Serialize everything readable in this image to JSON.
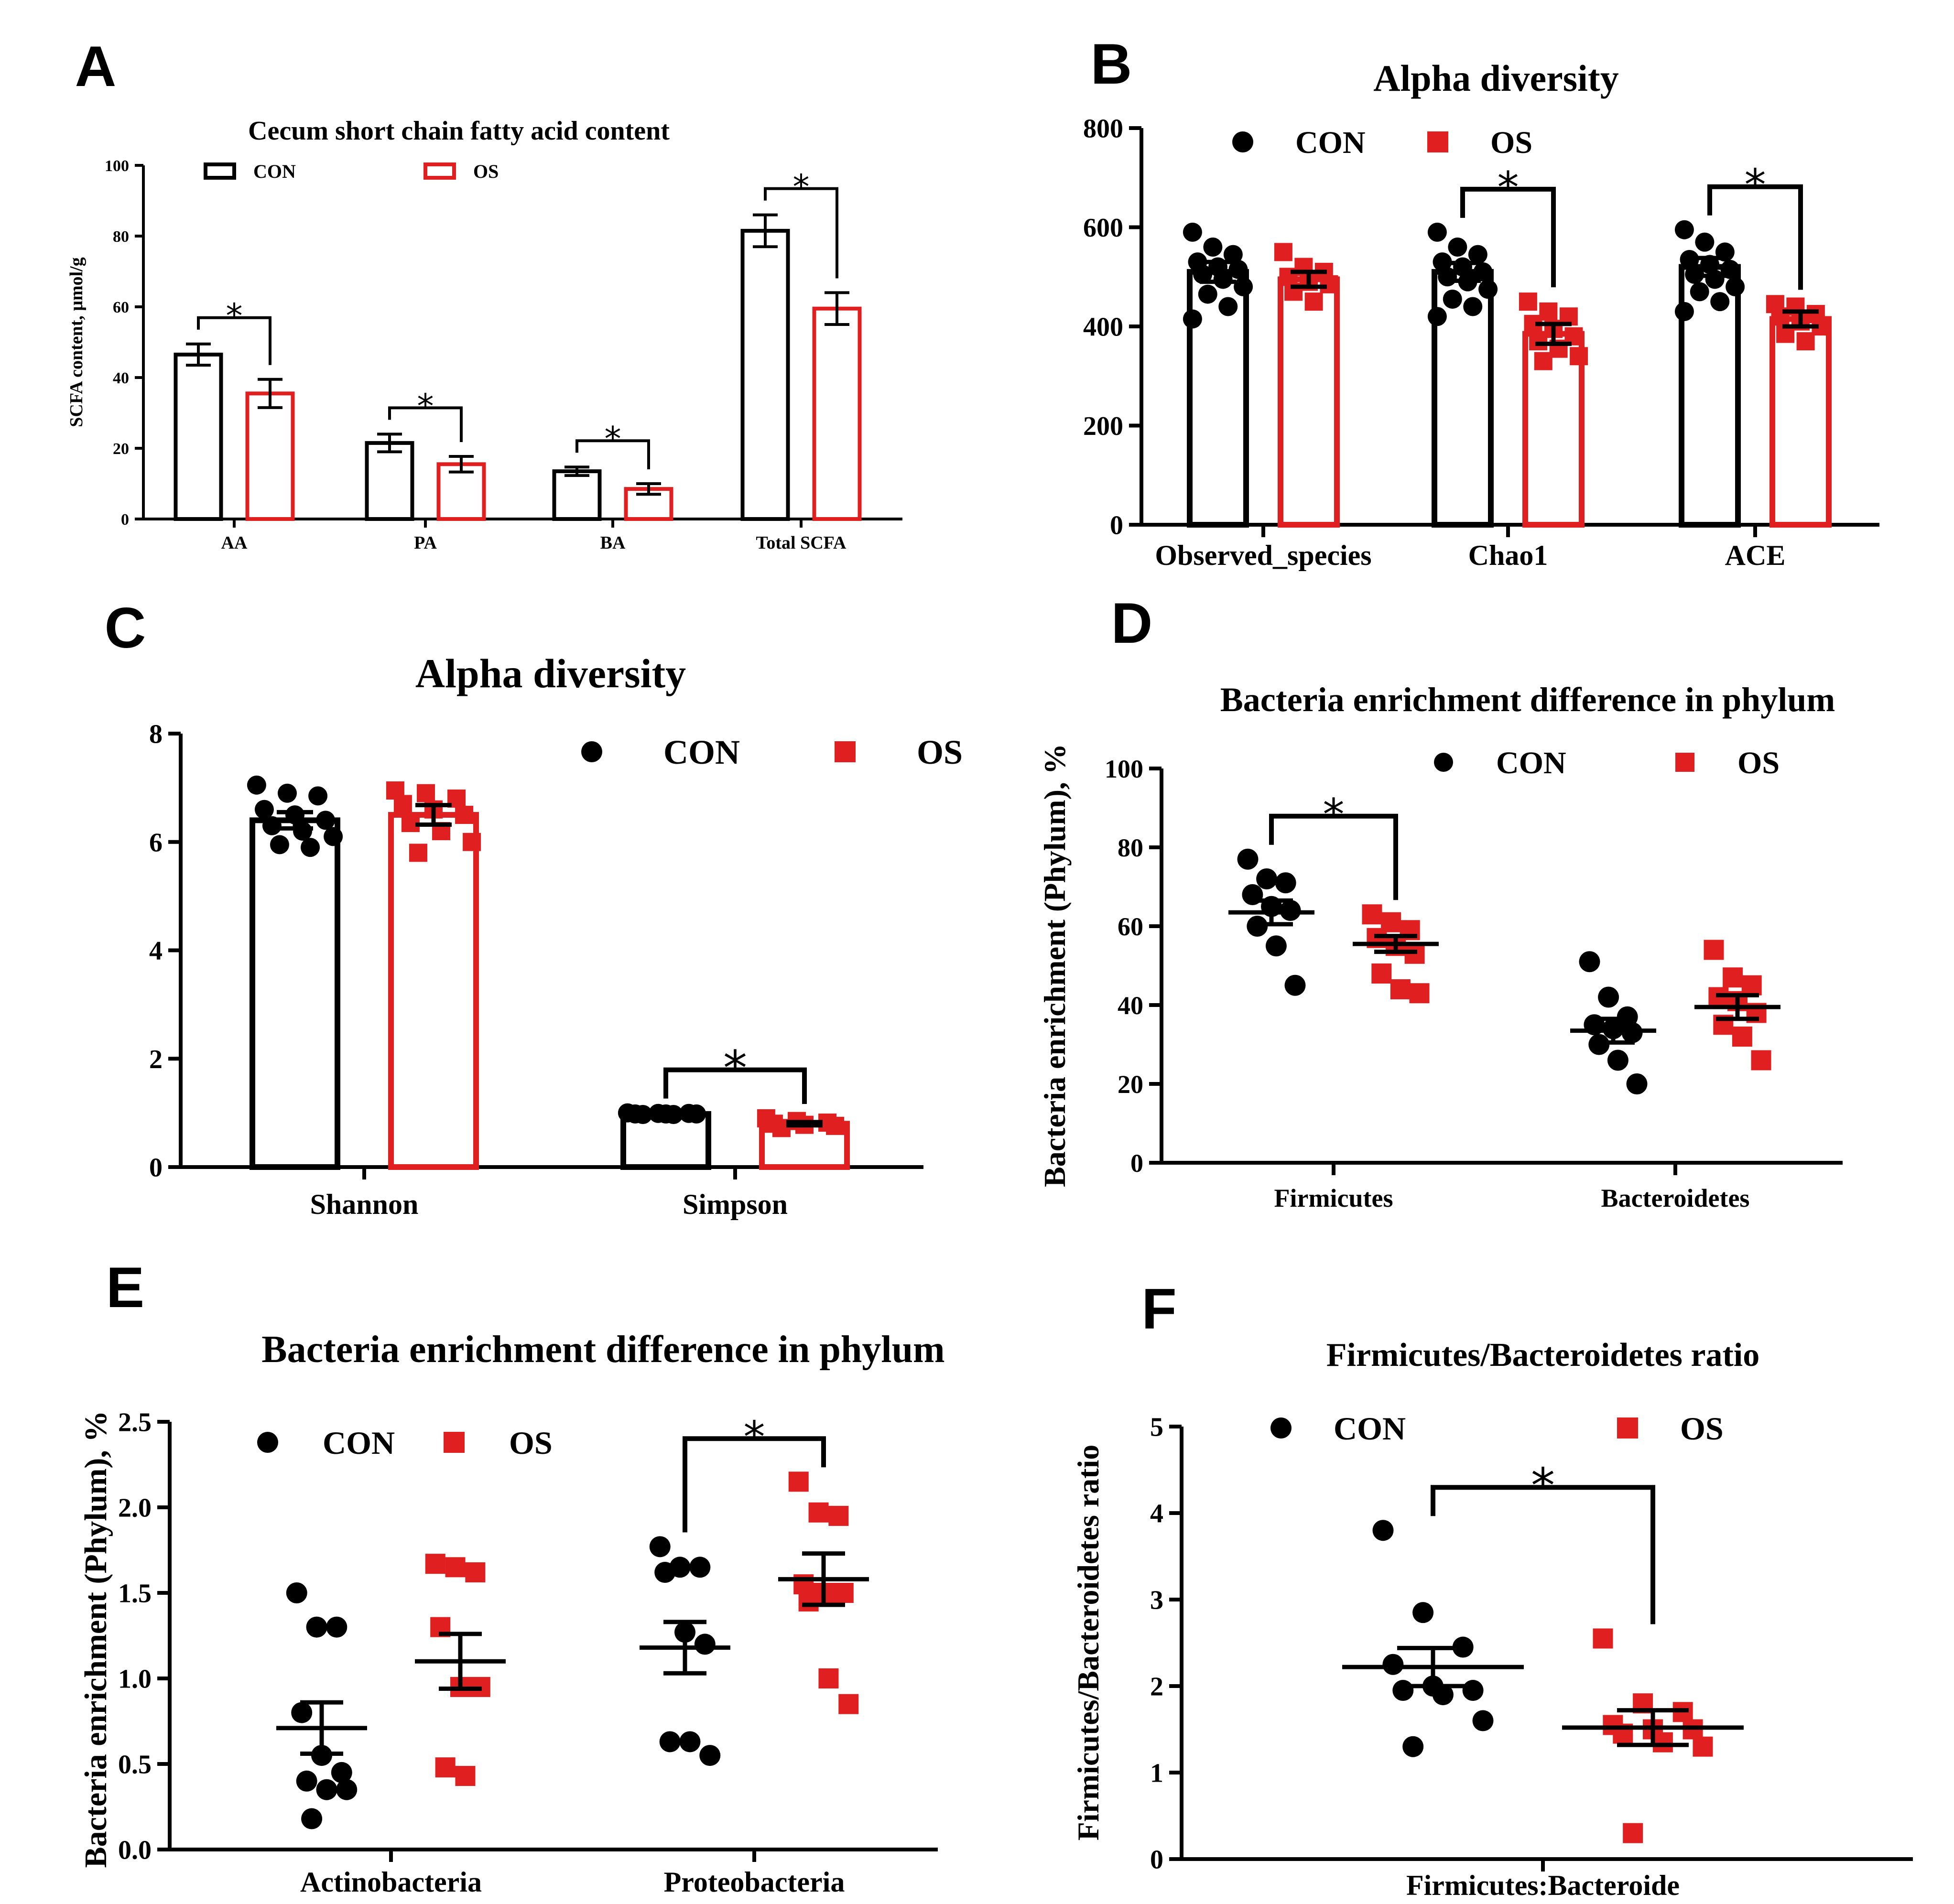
{
  "chart_data": [
    {
      "panel": "A",
      "type": "bar",
      "title": "Cecum short chain fatty acid content",
      "ylabel": "SCFA content, μmol/g",
      "xlabel": "",
      "ylim": [
        0,
        100
      ],
      "yticks": [
        0,
        20,
        40,
        60,
        80,
        100
      ],
      "categories": [
        "AA",
        "PA",
        "BA",
        "Total SCFA"
      ],
      "legend": [
        "CON",
        "OS"
      ],
      "legend_position": "top-left",
      "series": [
        {
          "name": "CON",
          "color": "#000000",
          "values": [
            46.5,
            21.5,
            13.5,
            81.5
          ],
          "errors": [
            3,
            2.5,
            1.2,
            4.5
          ],
          "points": []
        },
        {
          "name": "OS",
          "color": "#e02020",
          "values": [
            35.5,
            15.5,
            8.5,
            59.5
          ],
          "errors": [
            4,
            2.2,
            1.5,
            4.5
          ],
          "points": []
        }
      ],
      "significance": [
        {
          "category": 0,
          "label": "*"
        },
        {
          "category": 1,
          "label": "*"
        },
        {
          "category": 2,
          "label": "*"
        },
        {
          "category": 3,
          "label": "*"
        }
      ],
      "grid": false
    },
    {
      "panel": "B",
      "type": "bar",
      "title": "Alpha diversity",
      "ylabel": "",
      "xlabel": "",
      "ylim": [
        0,
        800
      ],
      "yticks": [
        0,
        200,
        400,
        600,
        800
      ],
      "categories": [
        "Observed_species",
        "Chao1",
        "ACE"
      ],
      "legend": [
        "CON",
        "OS"
      ],
      "legend_position": "top",
      "series": [
        {
          "name": "CON",
          "color": "#000000",
          "values": [
            510,
            510,
            520
          ],
          "errors": [
            20,
            18,
            18
          ],
          "points": [
            [
              590,
              560,
              545,
              530,
              520,
              515,
              505,
              495,
              480,
              465,
              440,
              415
            ],
            [
              590,
              560,
              545,
              530,
              520,
              510,
              500,
              490,
              475,
              455,
              440,
              420
            ],
            [
              595,
              570,
              550,
              535,
              525,
              515,
              505,
              495,
              480,
              470,
              450,
              430
            ]
          ]
        },
        {
          "name": "OS",
          "color": "#e02020",
          "values": [
            495,
            385,
            415
          ],
          "errors": [
            15,
            20,
            15
          ],
          "points": [
            [
              550,
              520,
              510,
              500,
              490,
              485,
              470,
              450
            ],
            [
              450,
              430,
              420,
              405,
              395,
              380,
              370,
              355,
              340,
              330
            ],
            [
              445,
              440,
              425,
              420,
              410,
              400,
              385,
              370
            ]
          ]
        }
      ],
      "significance": [
        {
          "category": 1,
          "label": "*"
        },
        {
          "category": 2,
          "label": "*"
        }
      ],
      "grid": false
    },
    {
      "panel": "C",
      "type": "bar",
      "title": "Alpha diversity",
      "ylabel": "",
      "xlabel": "",
      "ylim": [
        0,
        8
      ],
      "yticks": [
        0,
        2,
        4,
        6,
        8
      ],
      "categories": [
        "Shannon",
        "Simpson"
      ],
      "legend": [
        "CON",
        "OS"
      ],
      "legend_position": "top-right",
      "series": [
        {
          "name": "CON",
          "color": "#000000",
          "values": [
            6.4,
            0.98
          ],
          "errors": [
            0.15,
            0.01
          ],
          "points": [
            [
              7.05,
              6.9,
              6.85,
              6.6,
              6.5,
              6.4,
              6.3,
              6.2,
              6.1,
              5.95,
              5.9
            ],
            [
              1.0,
              0.99,
              0.99,
              0.98,
              0.98,
              0.98,
              0.97,
              0.97
            ]
          ]
        },
        {
          "name": "OS",
          "color": "#e02020",
          "values": [
            6.5,
            0.8
          ],
          "errors": [
            0.18,
            0.03
          ],
          "points": [
            [
              6.95,
              6.9,
              6.8,
              6.7,
              6.6,
              6.5,
              6.35,
              6.2,
              6.0,
              5.8
            ],
            [
              0.9,
              0.85,
              0.82,
              0.8,
              0.78,
              0.76,
              0.72
            ]
          ]
        }
      ],
      "significance": [
        {
          "category": 1,
          "label": "*"
        }
      ],
      "grid": false
    },
    {
      "panel": "D",
      "type": "scatter",
      "title": "Bacteria enrichment difference in phylum",
      "ylabel": "Bacteria enrichment (Phylum), %",
      "xlabel": "",
      "ylim": [
        0,
        100
      ],
      "yticks": [
        0,
        20,
        40,
        60,
        80,
        100
      ],
      "categories": [
        "Firmicutes",
        "Bacteroidetes"
      ],
      "legend": [
        "CON",
        "OS"
      ],
      "legend_position": "top-right",
      "series": [
        {
          "name": "CON",
          "color": "#000000",
          "mean": [
            63.5,
            33.5
          ],
          "sem": [
            3,
            3
          ],
          "points": [
            [
              77,
              72,
              71,
              68,
              65,
              64,
              60,
              55,
              45
            ],
            [
              51,
              42,
              37,
              35,
              34,
              33,
              30,
              26,
              20
            ]
          ]
        },
        {
          "name": "OS",
          "color": "#e02020",
          "mean": [
            55.5,
            39.5
          ],
          "sem": [
            2,
            3
          ],
          "points": [
            [
              63,
              61,
              59,
              57,
              55,
              53,
              48,
              44,
              43
            ],
            [
              54,
              47,
              45,
              42,
              41,
              38,
              35,
              32,
              26
            ]
          ]
        }
      ],
      "significance": [
        {
          "category": 0,
          "label": "*"
        }
      ],
      "grid": false
    },
    {
      "panel": "E",
      "type": "scatter",
      "title": "Bacteria enrichment difference in phylum",
      "ylabel": "Bacteria enrichment (Phylum), %",
      "xlabel": "",
      "ylim": [
        0,
        2.5
      ],
      "yticks": [
        "0.0",
        "0.5",
        "1.0",
        "1.5",
        "2.0",
        "2.5"
      ],
      "categories": [
        "Actinobacteria",
        "Proteobacteria"
      ],
      "legend": [
        "CON",
        "OS"
      ],
      "legend_position": "top-left",
      "series": [
        {
          "name": "CON",
          "color": "#000000",
          "mean": [
            0.71,
            1.18
          ],
          "sem": [
            0.15,
            0.15
          ],
          "points": [
            [
              1.5,
              1.3,
              1.3,
              0.8,
              0.55,
              0.45,
              0.4,
              0.35,
              0.35,
              0.18
            ],
            [
              1.77,
              1.65,
              1.65,
              1.62,
              1.27,
              1.2,
              0.63,
              0.63,
              0.55
            ]
          ]
        },
        {
          "name": "OS",
          "color": "#e02020",
          "mean": [
            1.1,
            1.58
          ],
          "sem": [
            0.16,
            0.15
          ],
          "points": [
            [
              1.67,
              1.65,
              1.62,
              1.3,
              0.95,
              0.95,
              0.48,
              0.43
            ],
            [
              2.15,
              1.97,
              1.95,
              1.55,
              1.5,
              1.5,
              1.45,
              1.0,
              0.85
            ]
          ]
        }
      ],
      "significance": [
        {
          "category": 1,
          "label": "*"
        }
      ],
      "grid": false
    },
    {
      "panel": "F",
      "type": "scatter",
      "title": "Firmicutes/Bacteroidetes ratio",
      "ylabel": "Firmicutes/Bacteroidetes ratio",
      "xlabel": "",
      "ylim": [
        0,
        5
      ],
      "yticks": [
        0,
        1,
        2,
        3,
        4,
        5
      ],
      "categories": [
        "Firmicutes:Bacteroide"
      ],
      "legend": [
        "CON",
        "OS"
      ],
      "legend_position": "top",
      "series": [
        {
          "name": "CON",
          "color": "#000000",
          "mean": [
            2.22
          ],
          "sem": [
            0.22
          ],
          "points": [
            [
              3.8,
              2.85,
              2.45,
              2.25,
              2.0,
              1.95,
              1.95,
              1.9,
              1.6,
              1.3
            ]
          ]
        },
        {
          "name": "OS",
          "color": "#e02020",
          "mean": [
            1.52
          ],
          "sem": [
            0.2
          ],
          "points": [
            [
              2.55,
              1.8,
              1.7,
              1.55,
              1.5,
              1.5,
              1.45,
              1.35,
              1.3,
              0.3
            ]
          ]
        }
      ],
      "significance": [
        {
          "category": 0,
          "label": "*"
        }
      ],
      "grid": false
    }
  ]
}
